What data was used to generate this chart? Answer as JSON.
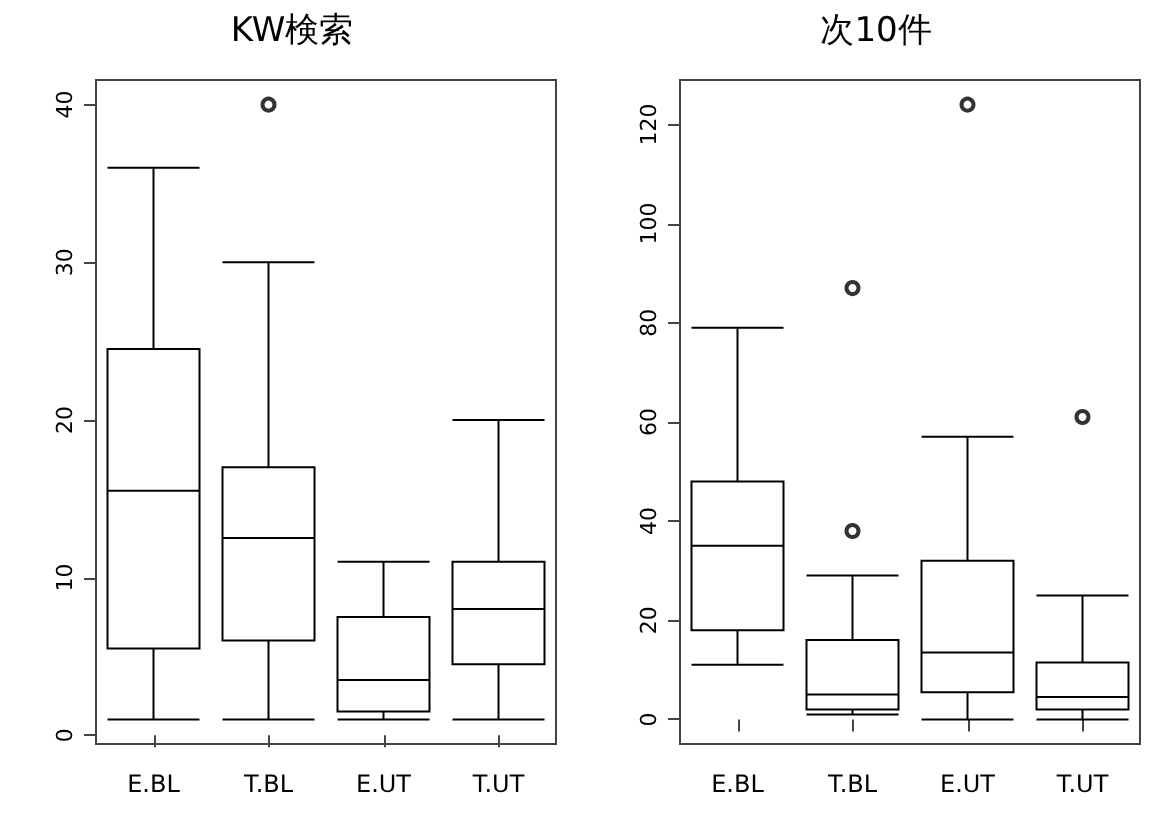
{
  "chart_data": [
    {
      "type": "box",
      "title": "KW検索",
      "categories": [
        "E.BL",
        "T.BL",
        "E.UT",
        "T.UT"
      ],
      "ylim": [
        -0.56,
        41.56
      ],
      "yticks": [
        0,
        10,
        20,
        30,
        40
      ],
      "grid": false,
      "color": "#000000",
      "boxes": [
        {
          "low": 1,
          "q1": 5.5,
          "median": 15.5,
          "q3": 24.5,
          "high": 36
        },
        {
          "low": 1,
          "q1": 6,
          "median": 12.5,
          "q3": 17,
          "high": 30,
          "outliers": [
            40
          ]
        },
        {
          "low": 1,
          "q1": 1.5,
          "median": 3.5,
          "q3": 7.5,
          "high": 11
        },
        {
          "low": 1,
          "q1": 4.5,
          "median": 8,
          "q3": 11,
          "high": 20
        }
      ]
    },
    {
      "type": "box",
      "title": "次10件",
      "categories": [
        "E.BL",
        "T.BL",
        "E.UT",
        "T.UT"
      ],
      "ylim": [
        -4.96,
        128.96
      ],
      "yticks": [
        0,
        20,
        40,
        60,
        80,
        100,
        120
      ],
      "grid": false,
      "color": "#000000",
      "boxes": [
        {
          "low": 11,
          "q1": 18,
          "median": 35,
          "q3": 48,
          "high": 79
        },
        {
          "low": 1,
          "q1": 2,
          "median": 5,
          "q3": 16,
          "high": 29,
          "outliers": [
            38,
            87
          ]
        },
        {
          "low": 0,
          "q1": 5.5,
          "median": 13.5,
          "q3": 32,
          "high": 57,
          "outliers": [
            124
          ]
        },
        {
          "low": 0,
          "q1": 2,
          "median": 4.5,
          "q3": 11.5,
          "high": 25,
          "outliers": [
            61
          ]
        }
      ]
    }
  ]
}
